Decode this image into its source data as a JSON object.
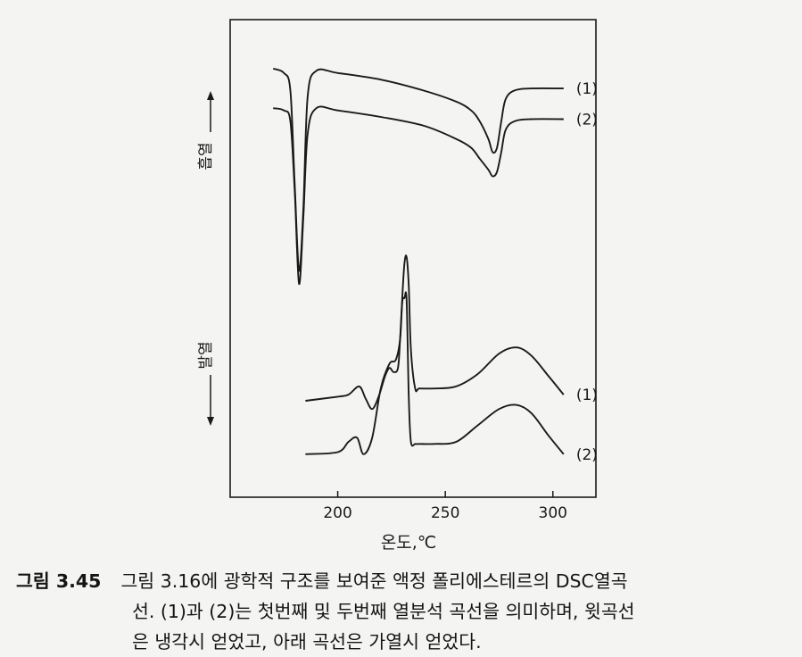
{
  "chart_data": {
    "type": "line",
    "xlabel": "온도,℃",
    "ylabel_top": "흡열",
    "ylabel_bottom": "발열",
    "xlim": [
      150,
      320
    ],
    "x_ticks": [
      200,
      250,
      300
    ],
    "series": [
      {
        "name": "(1)",
        "group": "cooling",
        "x": [
          170,
          175,
          178,
          180,
          182,
          184,
          186,
          190,
          200,
          220,
          240,
          255,
          262,
          266,
          270,
          272,
          274,
          276,
          278,
          282,
          290,
          305
        ],
        "y": [
          0.98,
          0.96,
          0.88,
          0.45,
          0.06,
          0.34,
          0.85,
          0.97,
          0.96,
          0.93,
          0.88,
          0.83,
          0.79,
          0.74,
          0.66,
          0.6,
          0.62,
          0.74,
          0.84,
          0.88,
          0.89,
          0.89
        ]
      },
      {
        "name": "(2)",
        "group": "cooling",
        "x": [
          170,
          175,
          178,
          180,
          182,
          184,
          186,
          190,
          200,
          220,
          240,
          255,
          262,
          266,
          270,
          272,
          274,
          276,
          278,
          282,
          290,
          305
        ],
        "y": [
          0.8,
          0.79,
          0.74,
          0.42,
          0.0,
          0.3,
          0.68,
          0.8,
          0.79,
          0.76,
          0.72,
          0.66,
          0.62,
          0.57,
          0.52,
          0.49,
          0.51,
          0.6,
          0.7,
          0.74,
          0.75,
          0.75
        ]
      },
      {
        "name": "(1)",
        "group": "heating",
        "x": [
          185,
          200,
          205,
          210,
          213,
          216,
          219,
          222,
          224,
          226,
          228,
          229,
          230,
          231,
          232,
          233,
          234,
          236,
          238,
          245,
          255,
          265,
          275,
          283,
          290,
          298,
          305
        ],
        "y": [
          0.3,
          0.32,
          0.33,
          0.37,
          0.31,
          0.26,
          0.32,
          0.42,
          0.46,
          0.44,
          0.46,
          0.6,
          0.8,
          0.97,
          1.0,
          0.86,
          0.55,
          0.36,
          0.36,
          0.36,
          0.37,
          0.43,
          0.53,
          0.56,
          0.52,
          0.42,
          0.33
        ]
      },
      {
        "name": "(2)",
        "group": "heating",
        "x": [
          185,
          200,
          205,
          209,
          212,
          216,
          220,
          224,
          227,
          229,
          230,
          231,
          232,
          233,
          234,
          236,
          238,
          245,
          255,
          265,
          275,
          283,
          290,
          298,
          305
        ],
        "y": [
          0.04,
          0.05,
          0.1,
          0.12,
          0.04,
          0.12,
          0.36,
          0.48,
          0.5,
          0.6,
          0.78,
          0.8,
          0.79,
          0.32,
          0.1,
          0.09,
          0.09,
          0.09,
          0.1,
          0.18,
          0.26,
          0.28,
          0.24,
          0.13,
          0.04
        ]
      }
    ]
  },
  "caption": {
    "number": "그림 3.45",
    "line1": "그림 3.16에 광학적 구조를 보여준 액정 폴리에스테르의 DSC열곡",
    "line2": "선. (1)과 (2)는 첫번째 및 두번째 열분석 곡선을 의미하며, 윗곡선",
    "line3": "은 냉각시 얻었고, 아래 곡선은 가열시 얻었다."
  }
}
